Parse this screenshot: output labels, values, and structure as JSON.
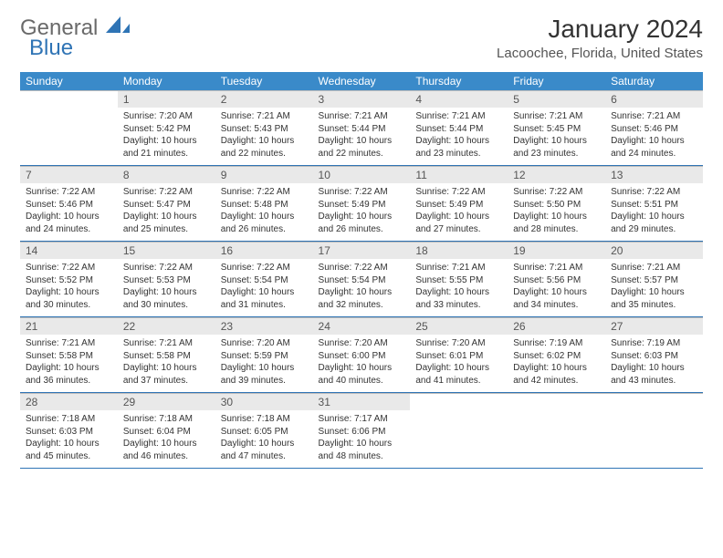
{
  "logo": {
    "line1": "General",
    "line2": "Blue",
    "color_general": "#6a6a6a",
    "color_blue": "#2f74b5",
    "sail_color": "#2f74b5"
  },
  "title": "January 2024",
  "location": "Lacoochee, Florida, United States",
  "header": {
    "bg_color": "#3a8ac9",
    "text_color": "#ffffff",
    "days": [
      "Sunday",
      "Monday",
      "Tuesday",
      "Wednesday",
      "Thursday",
      "Friday",
      "Saturday"
    ]
  },
  "style": {
    "daynum_bg": "#e9e9e9",
    "divider_color": "#2f74b5",
    "cell_fontsize": 10,
    "head_fontsize": 12
  },
  "weeks": [
    {
      "nums": [
        "",
        "1",
        "2",
        "3",
        "4",
        "5",
        "6"
      ],
      "cells": [
        {
          "empty": true
        },
        {
          "sunrise": "Sunrise: 7:20 AM",
          "sunset": "Sunset: 5:42 PM",
          "day1": "Daylight: 10 hours",
          "day2": "and 21 minutes."
        },
        {
          "sunrise": "Sunrise: 7:21 AM",
          "sunset": "Sunset: 5:43 PM",
          "day1": "Daylight: 10 hours",
          "day2": "and 22 minutes."
        },
        {
          "sunrise": "Sunrise: 7:21 AM",
          "sunset": "Sunset: 5:44 PM",
          "day1": "Daylight: 10 hours",
          "day2": "and 22 minutes."
        },
        {
          "sunrise": "Sunrise: 7:21 AM",
          "sunset": "Sunset: 5:44 PM",
          "day1": "Daylight: 10 hours",
          "day2": "and 23 minutes."
        },
        {
          "sunrise": "Sunrise: 7:21 AM",
          "sunset": "Sunset: 5:45 PM",
          "day1": "Daylight: 10 hours",
          "day2": "and 23 minutes."
        },
        {
          "sunrise": "Sunrise: 7:21 AM",
          "sunset": "Sunset: 5:46 PM",
          "day1": "Daylight: 10 hours",
          "day2": "and 24 minutes."
        }
      ]
    },
    {
      "nums": [
        "7",
        "8",
        "9",
        "10",
        "11",
        "12",
        "13"
      ],
      "cells": [
        {
          "sunrise": "Sunrise: 7:22 AM",
          "sunset": "Sunset: 5:46 PM",
          "day1": "Daylight: 10 hours",
          "day2": "and 24 minutes."
        },
        {
          "sunrise": "Sunrise: 7:22 AM",
          "sunset": "Sunset: 5:47 PM",
          "day1": "Daylight: 10 hours",
          "day2": "and 25 minutes."
        },
        {
          "sunrise": "Sunrise: 7:22 AM",
          "sunset": "Sunset: 5:48 PM",
          "day1": "Daylight: 10 hours",
          "day2": "and 26 minutes."
        },
        {
          "sunrise": "Sunrise: 7:22 AM",
          "sunset": "Sunset: 5:49 PM",
          "day1": "Daylight: 10 hours",
          "day2": "and 26 minutes."
        },
        {
          "sunrise": "Sunrise: 7:22 AM",
          "sunset": "Sunset: 5:49 PM",
          "day1": "Daylight: 10 hours",
          "day2": "and 27 minutes."
        },
        {
          "sunrise": "Sunrise: 7:22 AM",
          "sunset": "Sunset: 5:50 PM",
          "day1": "Daylight: 10 hours",
          "day2": "and 28 minutes."
        },
        {
          "sunrise": "Sunrise: 7:22 AM",
          "sunset": "Sunset: 5:51 PM",
          "day1": "Daylight: 10 hours",
          "day2": "and 29 minutes."
        }
      ]
    },
    {
      "nums": [
        "14",
        "15",
        "16",
        "17",
        "18",
        "19",
        "20"
      ],
      "cells": [
        {
          "sunrise": "Sunrise: 7:22 AM",
          "sunset": "Sunset: 5:52 PM",
          "day1": "Daylight: 10 hours",
          "day2": "and 30 minutes."
        },
        {
          "sunrise": "Sunrise: 7:22 AM",
          "sunset": "Sunset: 5:53 PM",
          "day1": "Daylight: 10 hours",
          "day2": "and 30 minutes."
        },
        {
          "sunrise": "Sunrise: 7:22 AM",
          "sunset": "Sunset: 5:54 PM",
          "day1": "Daylight: 10 hours",
          "day2": "and 31 minutes."
        },
        {
          "sunrise": "Sunrise: 7:22 AM",
          "sunset": "Sunset: 5:54 PM",
          "day1": "Daylight: 10 hours",
          "day2": "and 32 minutes."
        },
        {
          "sunrise": "Sunrise: 7:21 AM",
          "sunset": "Sunset: 5:55 PM",
          "day1": "Daylight: 10 hours",
          "day2": "and 33 minutes."
        },
        {
          "sunrise": "Sunrise: 7:21 AM",
          "sunset": "Sunset: 5:56 PM",
          "day1": "Daylight: 10 hours",
          "day2": "and 34 minutes."
        },
        {
          "sunrise": "Sunrise: 7:21 AM",
          "sunset": "Sunset: 5:57 PM",
          "day1": "Daylight: 10 hours",
          "day2": "and 35 minutes."
        }
      ]
    },
    {
      "nums": [
        "21",
        "22",
        "23",
        "24",
        "25",
        "26",
        "27"
      ],
      "cells": [
        {
          "sunrise": "Sunrise: 7:21 AM",
          "sunset": "Sunset: 5:58 PM",
          "day1": "Daylight: 10 hours",
          "day2": "and 36 minutes."
        },
        {
          "sunrise": "Sunrise: 7:21 AM",
          "sunset": "Sunset: 5:58 PM",
          "day1": "Daylight: 10 hours",
          "day2": "and 37 minutes."
        },
        {
          "sunrise": "Sunrise: 7:20 AM",
          "sunset": "Sunset: 5:59 PM",
          "day1": "Daylight: 10 hours",
          "day2": "and 39 minutes."
        },
        {
          "sunrise": "Sunrise: 7:20 AM",
          "sunset": "Sunset: 6:00 PM",
          "day1": "Daylight: 10 hours",
          "day2": "and 40 minutes."
        },
        {
          "sunrise": "Sunrise: 7:20 AM",
          "sunset": "Sunset: 6:01 PM",
          "day1": "Daylight: 10 hours",
          "day2": "and 41 minutes."
        },
        {
          "sunrise": "Sunrise: 7:19 AM",
          "sunset": "Sunset: 6:02 PM",
          "day1": "Daylight: 10 hours",
          "day2": "and 42 minutes."
        },
        {
          "sunrise": "Sunrise: 7:19 AM",
          "sunset": "Sunset: 6:03 PM",
          "day1": "Daylight: 10 hours",
          "day2": "and 43 minutes."
        }
      ]
    },
    {
      "nums": [
        "28",
        "29",
        "30",
        "31",
        "",
        "",
        ""
      ],
      "cells": [
        {
          "sunrise": "Sunrise: 7:18 AM",
          "sunset": "Sunset: 6:03 PM",
          "day1": "Daylight: 10 hours",
          "day2": "and 45 minutes."
        },
        {
          "sunrise": "Sunrise: 7:18 AM",
          "sunset": "Sunset: 6:04 PM",
          "day1": "Daylight: 10 hours",
          "day2": "and 46 minutes."
        },
        {
          "sunrise": "Sunrise: 7:18 AM",
          "sunset": "Sunset: 6:05 PM",
          "day1": "Daylight: 10 hours",
          "day2": "and 47 minutes."
        },
        {
          "sunrise": "Sunrise: 7:17 AM",
          "sunset": "Sunset: 6:06 PM",
          "day1": "Daylight: 10 hours",
          "day2": "and 48 minutes."
        },
        {
          "empty": true
        },
        {
          "empty": true
        },
        {
          "empty": true
        }
      ]
    }
  ]
}
